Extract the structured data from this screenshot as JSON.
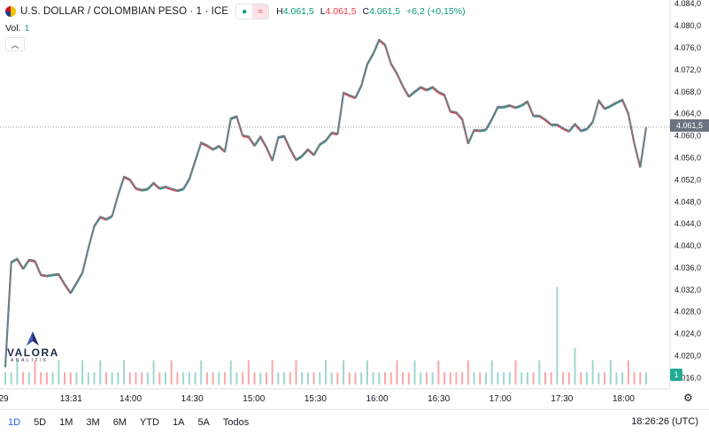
{
  "legend": {
    "title": "U.S. DOLLAR / COLOMBIAN PESO · 1 · ICE",
    "h_label": "H",
    "h_value": "4.061,5",
    "l_label": "L",
    "l_value": "4.061,5",
    "c_label": "C",
    "c_value": "4.061,5",
    "change": "+6,2 (+0,15%)",
    "market_status_icon": "green-dot-icon",
    "compare_icon": "approx-wave-icon",
    "vol_label": "Vol.",
    "vol_value": "1"
  },
  "logo": {
    "name": "VALORA",
    "sub": "ANALITIK"
  },
  "price_badge": "4.061,5",
  "volume_badge": "1",
  "bottom": {
    "ranges": [
      "1D",
      "5D",
      "1M",
      "3M",
      "6M",
      "YTD",
      "1A",
      "5A",
      "Todos"
    ],
    "active_range": "1D",
    "clock": "18:26:26 (UTC)"
  },
  "colors": {
    "up": "#089981",
    "down": "#f23645",
    "line": "#787b86",
    "vol_up": "#9fd7cf",
    "vol_down": "#f7a9a9",
    "accent": "#2962ff"
  },
  "chart_data": {
    "type": "line",
    "x_start": "12:59",
    "x_end": "18:11",
    "x_ticks": [
      "29",
      "13:31",
      "14:00",
      "14:30",
      "15:00",
      "15:30",
      "16:00",
      "16:30",
      "17:00",
      "17:30",
      "18:00"
    ],
    "y_ticks": [
      "4.084,0",
      "4.080,0",
      "4.076,0",
      "4.072,0",
      "4.068,0",
      "4.064,0",
      "4.060,0",
      "4.056,0",
      "4.052,0",
      "4.048,0",
      "4.044,0",
      "4.040,0",
      "4.036,0",
      "4.032,0",
      "4.028,0",
      "4.024,0",
      "4.020,0",
      "4.016,0"
    ],
    "ylim": [
      4013.9,
      4084.6
    ],
    "last_price": 4061.5,
    "series": [
      {
        "values": [
          4018.0,
          4037.0,
          4037.6,
          4035.8,
          4037.4,
          4037.2,
          4034.7,
          4034.5,
          4034.7,
          4034.8,
          4033.0,
          4031.4,
          4033.2,
          4035.1,
          4039.6,
          4043.6,
          4045.2,
          4044.8,
          4045.4,
          4049.2,
          4052.5,
          4052.0,
          4050.4,
          4050.1,
          4050.3,
          4051.4,
          4050.4,
          4050.7,
          4050.3,
          4050.0,
          4050.3,
          4052.1,
          4055.4,
          4058.7,
          4058.2,
          4057.5,
          4058.1,
          4057.1,
          4063.1,
          4063.5,
          4060.0,
          4059.8,
          4058.2,
          4059.8,
          4057.9,
          4055.5,
          4059.7,
          4059.9,
          4057.6,
          4055.6,
          4056.3,
          4057.5,
          4056.5,
          4058.4,
          4059.1,
          4060.5,
          4060.3,
          4067.8,
          4067.3,
          4066.9,
          4069.1,
          4073.0,
          4074.9,
          4077.4,
          4076.5,
          4073.1,
          4071.3,
          4069.0,
          4067.1,
          4068.0,
          4068.8,
          4068.3,
          4068.8,
          4067.9,
          4067.4,
          4064.4,
          4064.2,
          4063.0,
          4058.6,
          4061.0,
          4060.9,
          4061.1,
          4063.0,
          4065.2,
          4065.2,
          4065.5,
          4065.1,
          4065.5,
          4066.2,
          4063.6,
          4063.6,
          4062.9,
          4062.0,
          4062.0,
          4061.3,
          4060.8,
          4062.1,
          4060.9,
          4061.2,
          4062.5,
          4066.4,
          4064.9,
          4065.4,
          4066.0,
          4066.5,
          4064.0,
          4058.6,
          4054.3,
          4061.5
        ]
      }
    ],
    "volume": [
      1,
      1,
      2,
      1,
      1,
      2,
      1,
      1,
      1,
      2,
      1,
      1,
      1,
      2,
      1,
      1,
      2,
      1,
      1,
      1,
      2,
      1,
      1,
      1,
      1,
      2,
      1,
      1,
      2,
      1,
      1,
      1,
      1,
      2,
      1,
      1,
      1,
      1,
      2,
      1,
      1,
      2,
      1,
      1,
      1,
      2,
      1,
      1,
      1,
      2,
      1,
      1,
      1,
      1,
      2,
      1,
      1,
      2,
      1,
      1,
      1,
      2,
      1,
      1,
      1,
      1,
      2,
      1,
      1,
      2,
      1,
      1,
      1,
      2,
      1,
      1,
      1,
      1,
      2,
      1,
      1,
      1,
      2,
      1,
      1,
      1,
      2,
      1,
      1,
      1,
      2,
      1,
      1,
      8,
      1,
      1,
      3,
      1,
      1,
      2,
      1,
      1,
      2,
      1,
      1,
      2,
      1,
      1,
      1
    ]
  }
}
